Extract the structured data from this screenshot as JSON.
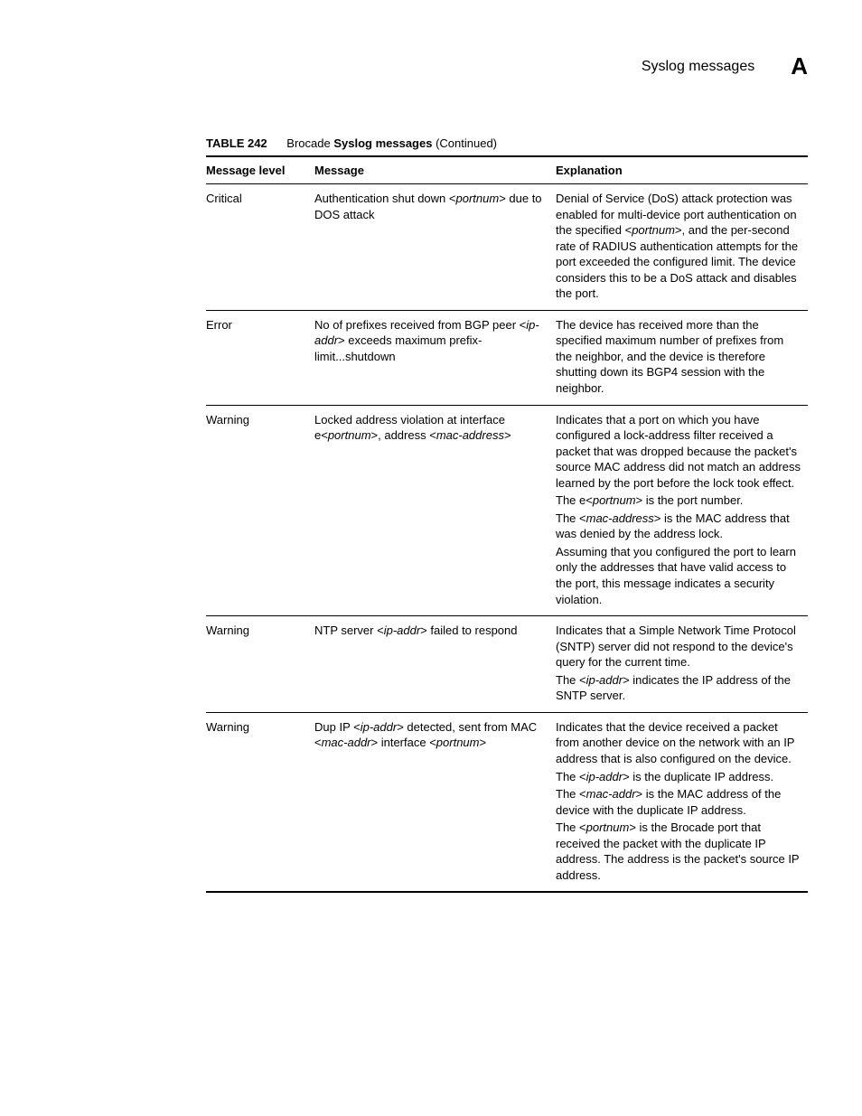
{
  "page": {
    "header_title": "Syslog messages",
    "chapter_letter": "A"
  },
  "table": {
    "label": "TABLE 242",
    "title_prefix": "Brocade ",
    "title_bold": "Syslog messages",
    "title_suffix": "  (Continued)",
    "columns": {
      "level": "Message level",
      "message": "Message",
      "explanation": "Explanation"
    },
    "rows": [
      {
        "level": "Critical",
        "message_segments": [
          {
            "t": "Authentication shut down <"
          },
          {
            "t": "portnum",
            "i": true
          },
          {
            "t": "> due to DOS attack"
          }
        ],
        "explanation_paragraphs": [
          [
            {
              "t": "Denial of Service (DoS) attack protection was enabled for multi-device port authentication on the specified <"
            },
            {
              "t": "portnum",
              "i": true
            },
            {
              "t": ">, and the per-second rate of RADIUS authentication attempts for the port exceeded the configured limit. The device considers this to be a DoS attack and disables the port."
            }
          ]
        ]
      },
      {
        "level": "Error",
        "message_segments": [
          {
            "t": "No of prefixes received from BGP peer <"
          },
          {
            "t": "ip-addr",
            "i": true
          },
          {
            "t": "> exceeds maximum prefix-limit...shutdown"
          }
        ],
        "explanation_paragraphs": [
          [
            {
              "t": "The device has received more than the specified maximum number of prefixes from the neighbor, and the device is therefore shutting down its BGP4 session with the neighbor."
            }
          ]
        ]
      },
      {
        "level": "Warning",
        "message_segments": [
          {
            "t": "Locked address violation at interface e<"
          },
          {
            "t": "portnum",
            "i": true
          },
          {
            "t": ">, address <"
          },
          {
            "t": "mac-address",
            "i": true
          },
          {
            "t": ">"
          }
        ],
        "explanation_paragraphs": [
          [
            {
              "t": "Indicates that a port on which you have configured a lock-address filter received a packet that was dropped because the packet's source MAC address did not match an address learned by the port before the lock took effect."
            }
          ],
          [
            {
              "t": "The e<"
            },
            {
              "t": "portnum",
              "i": true
            },
            {
              "t": "> is the port number."
            }
          ],
          [
            {
              "t": "The <"
            },
            {
              "t": "mac-address",
              "i": true
            },
            {
              "t": "> is the MAC address that was denied by the address lock."
            }
          ],
          [
            {
              "t": "Assuming that you configured the port to learn only the addresses that have valid access to the port, this message indicates a security violation."
            }
          ]
        ]
      },
      {
        "level": "Warning",
        "message_segments": [
          {
            "t": "NTP server <"
          },
          {
            "t": "ip-addr",
            "i": true
          },
          {
            "t": "> failed to respond"
          }
        ],
        "explanation_paragraphs": [
          [
            {
              "t": "Indicates that a Simple Network Time Protocol (SNTP) server did not respond to the device's query for the current time."
            }
          ],
          [
            {
              "t": "The <"
            },
            {
              "t": "ip-addr",
              "i": true
            },
            {
              "t": "> indicates the IP address of the SNTP server."
            }
          ]
        ]
      },
      {
        "level": "Warning",
        "message_segments": [
          {
            "t": "Dup IP <"
          },
          {
            "t": "ip-addr",
            "i": true
          },
          {
            "t": "> detected, sent from MAC <"
          },
          {
            "t": "mac-addr",
            "i": true
          },
          {
            "t": "> interface <"
          },
          {
            "t": "portnum",
            "i": true
          },
          {
            "t": ">"
          }
        ],
        "explanation_paragraphs": [
          [
            {
              "t": "Indicates that the device received a packet from another device on the network with an IP address that is also configured on the device."
            }
          ],
          [
            {
              "t": "The <"
            },
            {
              "t": "ip-addr",
              "i": true
            },
            {
              "t": "> is the duplicate IP address."
            }
          ],
          [
            {
              "t": "The <"
            },
            {
              "t": "mac-addr",
              "i": true
            },
            {
              "t": "> is the MAC address of the device with the duplicate IP address."
            }
          ],
          [
            {
              "t": "The <"
            },
            {
              "t": "portnum",
              "i": true
            },
            {
              "t": "> is the Brocade port that received the packet with the duplicate IP address. The address is the packet's source IP address."
            }
          ]
        ]
      }
    ]
  }
}
